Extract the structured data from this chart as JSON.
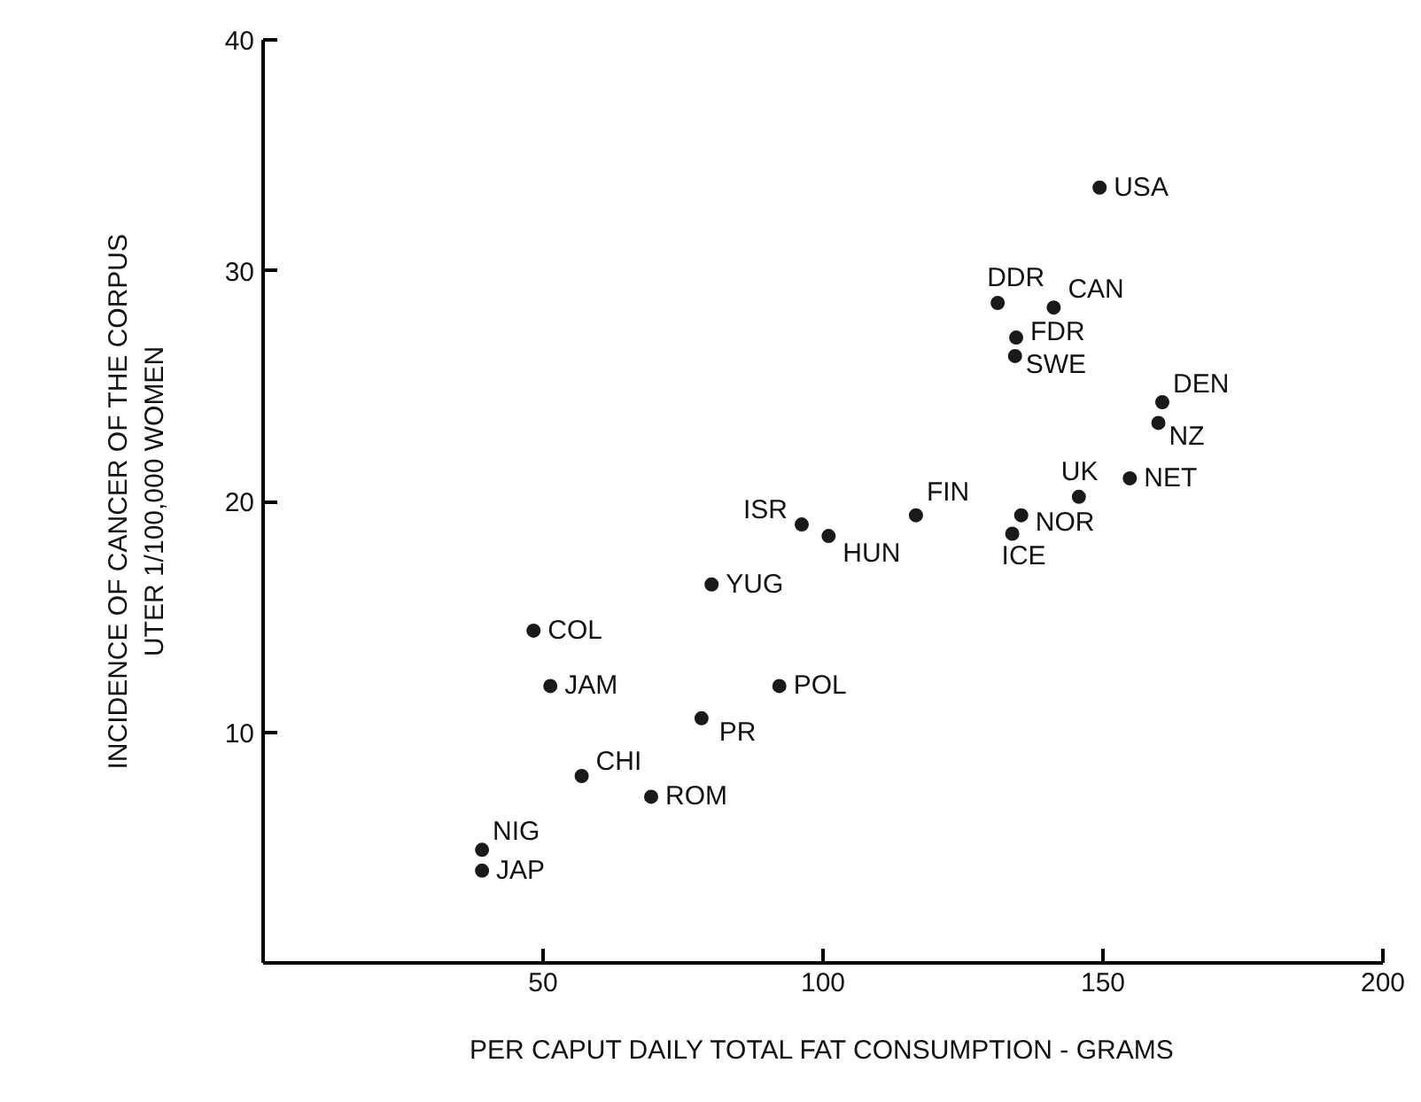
{
  "chart_data": {
    "type": "scatter",
    "xlabel": "PER CAPUT DAILY TOTAL FAT CONSUMPTION - GRAMS",
    "ylabel": "INCIDENCE OF CANCER OF THE CORPUS\nUTER 1/100,000 WOMEN",
    "xlim": [
      0,
      200
    ],
    "xticks": [
      50,
      100,
      150,
      200
    ],
    "ylim": [
      0,
      40
    ],
    "yticks": [
      10,
      20,
      30,
      40
    ],
    "grid": false,
    "marker": "circle",
    "series": [
      {
        "color": "#1a1a1a",
        "x": [
          48.3,
          51.3,
          92.2,
          78.3,
          56.9,
          69.3,
          39.1,
          39.1,
          80.1,
          96.2,
          101.0,
          116.6,
          133.8,
          135.4,
          145.7,
          154.8,
          149.4,
          131.2,
          141.2,
          134.5,
          134.3,
          160.6,
          159.9
        ],
        "values": [
          14.4,
          12.0,
          12.0,
          10.6,
          8.1,
          7.2,
          4.9,
          4.0,
          16.4,
          19.0,
          18.5,
          19.4,
          18.6,
          19.4,
          20.2,
          21.0,
          33.6,
          28.6,
          28.4,
          27.1,
          26.3,
          24.3,
          23.4
        ]
      }
    ],
    "annotations": [
      {
        "text": "COL",
        "x": 48.3,
        "y": 14.4
      },
      {
        "text": "JAM",
        "x": 51.3,
        "y": 12.0
      },
      {
        "text": "POL",
        "x": 92.2,
        "y": 12.0
      },
      {
        "text": "PR",
        "x": 78.3,
        "y": 10.6
      },
      {
        "text": "CHI",
        "x": 56.9,
        "y": 8.1
      },
      {
        "text": "ROM",
        "x": 69.3,
        "y": 7.2
      },
      {
        "text": "NIG",
        "x": 39.1,
        "y": 4.9
      },
      {
        "text": "JAP",
        "x": 39.1,
        "y": 4.0
      },
      {
        "text": "YUG",
        "x": 80.1,
        "y": 16.4
      },
      {
        "text": "ISR",
        "x": 96.2,
        "y": 19.0
      },
      {
        "text": "HUN",
        "x": 101.0,
        "y": 18.5
      },
      {
        "text": "FIN",
        "x": 116.6,
        "y": 19.4
      },
      {
        "text": "ICE",
        "x": 133.8,
        "y": 18.6
      },
      {
        "text": "NOR",
        "x": 135.4,
        "y": 19.4
      },
      {
        "text": "UK",
        "x": 145.7,
        "y": 20.2
      },
      {
        "text": "NET",
        "x": 154.8,
        "y": 21.0
      },
      {
        "text": "USA",
        "x": 149.4,
        "y": 33.6
      },
      {
        "text": "DDR",
        "x": 131.2,
        "y": 28.6
      },
      {
        "text": "CAN",
        "x": 141.2,
        "y": 28.4
      },
      {
        "text": "FDR",
        "x": 134.5,
        "y": 27.1
      },
      {
        "text": "SWE",
        "x": 134.3,
        "y": 26.3
      },
      {
        "text": "DEN",
        "x": 160.6,
        "y": 24.3
      },
      {
        "text": "NZ",
        "x": 159.9,
        "y": 23.4
      }
    ]
  }
}
